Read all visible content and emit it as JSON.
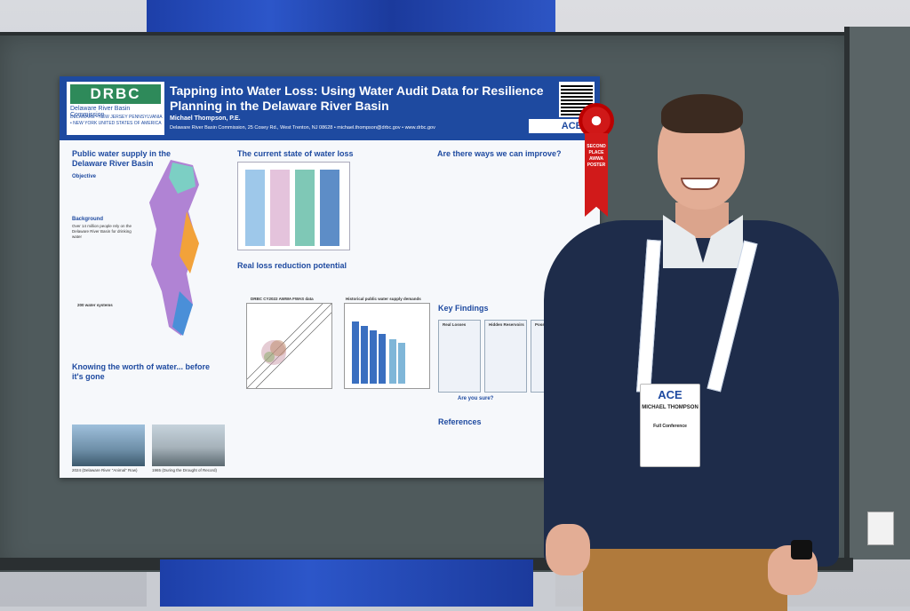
{
  "poster": {
    "logo": "DRBC",
    "org_name": "Delaware River Basin Commission",
    "states": "DELAWARE • NEW JERSEY PENNSYLVANIA • NEW YORK UNITED STATES OF AMERICA",
    "title": "Tapping into Water Loss: Using Water Audit Data for Resilience Planning in the Delaware River Basin",
    "author": "Michael Thompson, P.E.",
    "affiliation": "Delaware River Basin Commission, 25 Cosey Rd., West Trenton, NJ 08628 • michael.thompson@drbc.gov • www.drbc.gov",
    "ace_logo": "ACE",
    "sections": {
      "s1": "Public water supply in the Delaware River Basin",
      "objective": "Objective",
      "background": "Background",
      "s2": "The current state of water loss",
      "s3": "Are there ways we can improve?",
      "s4": "Real loss reduction potential",
      "s5": "Key Findings",
      "s6": "Knowing the worth of water... before it's gone",
      "s7": "References"
    },
    "stats": {
      "people": "Over 14 million people rely on the Delaware River Basin for drinking water",
      "systems": "200 water systems"
    },
    "chart_labels": {
      "scatter_title": "DRBC CY2022 AWWA FWAS data",
      "histo_title": "Historical public water supply demands"
    },
    "key_findings": [
      "Real Losses",
      "Hidden Reservoirs",
      "Possible"
    ],
    "question": "Are you sure?",
    "photo_captions": [
      "2024 (Delaware River \"Animal\" Row)",
      "1965 (During the Drought of Record)"
    ]
  },
  "ribbon": {
    "text": "SECOND PLACE AWWA POSTER"
  },
  "badge": {
    "logo": "ACE",
    "name": "MICHAEL THOMPSON",
    "type": "Full Conference"
  }
}
